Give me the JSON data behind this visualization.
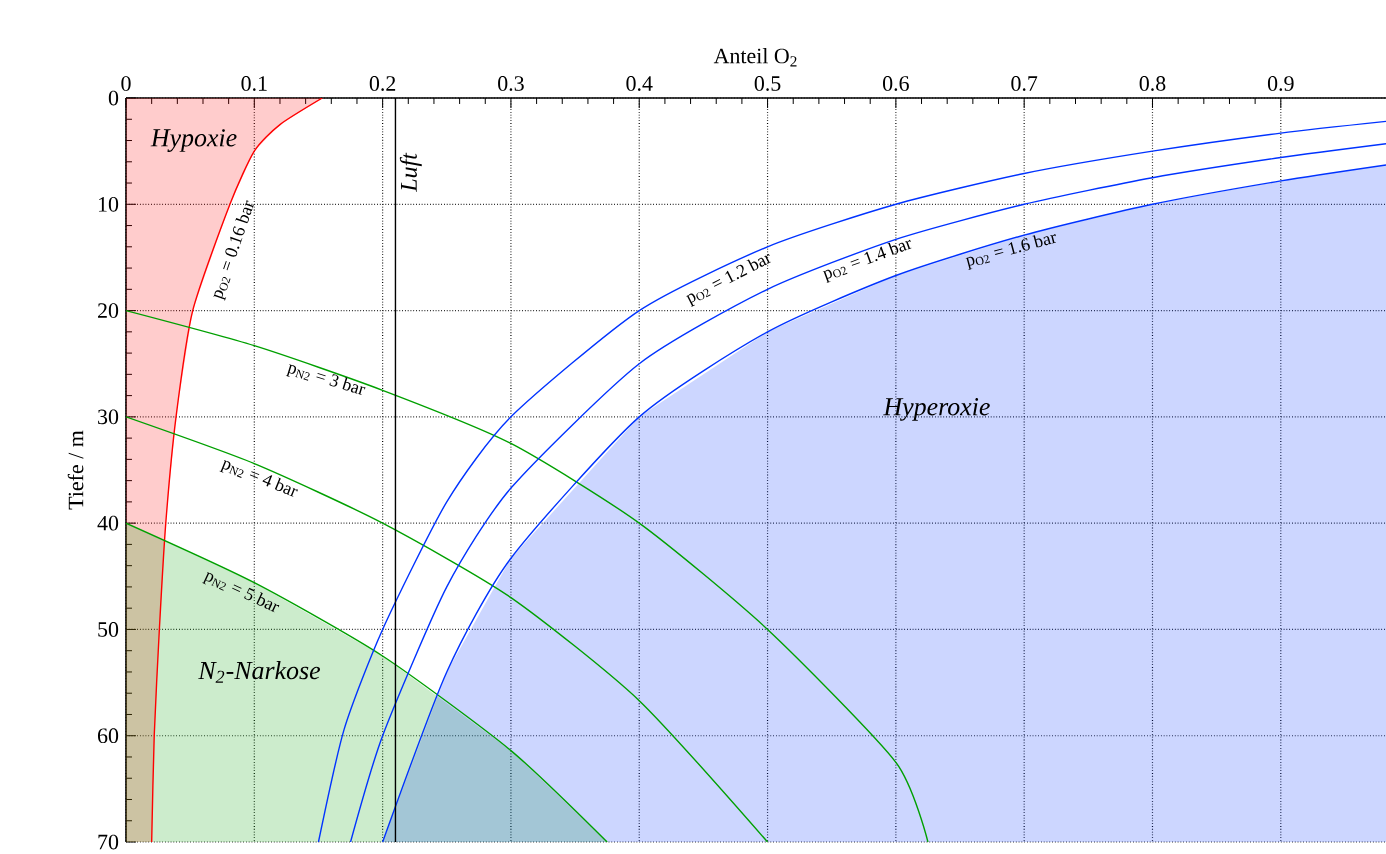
{
  "chart_data": {
    "type": "line",
    "xlabel": "Anteil O$_{2}$",
    "ylabel": "Tiefe / m",
    "xlim": [
      0,
      0.982
    ],
    "ylim": [
      70,
      0
    ],
    "xticks": [
      0,
      0.1,
      0.2,
      0.3,
      0.4,
      0.5,
      0.6,
      0.7,
      0.8,
      0.9
    ],
    "yticks": [
      0,
      10,
      20,
      30,
      40,
      50,
      60,
      70
    ],
    "grid": true,
    "series": [
      {
        "name": "p$_{O2}$ = 0.16 bar",
        "color": "#ff0000",
        "x": [
          0,
          0.02,
          0.022,
          0.026,
          0.031,
          0.039,
          0.052,
          0.081,
          0.1,
          0.12,
          0.153
        ],
        "values": [
          null,
          70,
          60,
          50,
          40,
          30,
          20,
          10,
          5,
          2.5,
          0
        ],
        "lower": [
          0,
          0,
          0,
          0,
          0,
          0,
          0,
          0,
          0,
          0,
          0
        ],
        "upper": [
          70,
          70,
          60,
          50,
          40,
          30,
          20,
          10,
          5,
          2.5,
          0
        ]
      },
      {
        "name": "p$_{N2}$ = 3 bar",
        "color": "#00a000",
        "x": [
          0,
          0.1,
          0.2,
          0.3,
          0.4,
          0.5,
          0.6,
          0.625
        ],
        "values": [
          20,
          23.3,
          27.5,
          32.5,
          40,
          50,
          62.5,
          70
        ]
      },
      {
        "name": "p$_{N2}$ = 4 bar",
        "color": "#00a000",
        "x": [
          0,
          0.1,
          0.2,
          0.3,
          0.4,
          0.5
        ],
        "values": [
          30,
          34.4,
          40,
          47,
          56.7,
          70
        ]
      },
      {
        "name": "p$_{N2}$ = 5 bar",
        "color": "#00a000",
        "x": [
          0,
          0.1,
          0.2,
          0.3,
          0.375
        ],
        "values": [
          40,
          45.6,
          52.5,
          61.4,
          70
        ],
        "lower": [
          40,
          45.6,
          52.5,
          61.4,
          70
        ],
        "upper": [
          70,
          70,
          70,
          70,
          70
        ]
      },
      {
        "name": "p$_{O2}$ = 1.2 bar",
        "color": "#0033ff",
        "x": [
          0.15,
          0.17,
          0.2,
          0.25,
          0.3,
          0.4,
          0.5,
          0.6,
          0.7,
          0.8,
          0.9,
          0.982
        ],
        "values": [
          70,
          59.4,
          50,
          38,
          30,
          20,
          14,
          10,
          7.1,
          5,
          3.3,
          2.2
        ]
      },
      {
        "name": "p$_{O2}$ = 1.4 bar",
        "color": "#0033ff",
        "x": [
          0.175,
          0.2,
          0.25,
          0.3,
          0.4,
          0.5,
          0.6,
          0.7,
          0.8,
          0.9,
          0.982
        ],
        "values": [
          70,
          60,
          46,
          36.7,
          25,
          18,
          13.3,
          10,
          7.5,
          5.6,
          4.3
        ]
      },
      {
        "name": "p$_{O2}$ = 1.6 bar",
        "color": "#0033ff",
        "x": [
          0.2,
          0.25,
          0.3,
          0.4,
          0.5,
          0.6,
          0.7,
          0.8,
          0.9,
          0.982
        ],
        "values": [
          70,
          54,
          43.3,
          30,
          22,
          16.7,
          12.9,
          10,
          7.8,
          6.3
        ],
        "lower": [
          70,
          54,
          43.3,
          30,
          22,
          16.7,
          12.9,
          10,
          7.8,
          6.3
        ],
        "upper": [
          70,
          70,
          70,
          70,
          70,
          70,
          70,
          70,
          70,
          70
        ]
      }
    ],
    "annotations": [
      "Hypoxie",
      "N$_{2}$-Narkose",
      "Hyperoxie"
    ],
    "ref_lines": [
      {
        "axis": "x",
        "value": 0.21,
        "label": "Luft",
        "color": "#000000"
      }
    ]
  }
}
